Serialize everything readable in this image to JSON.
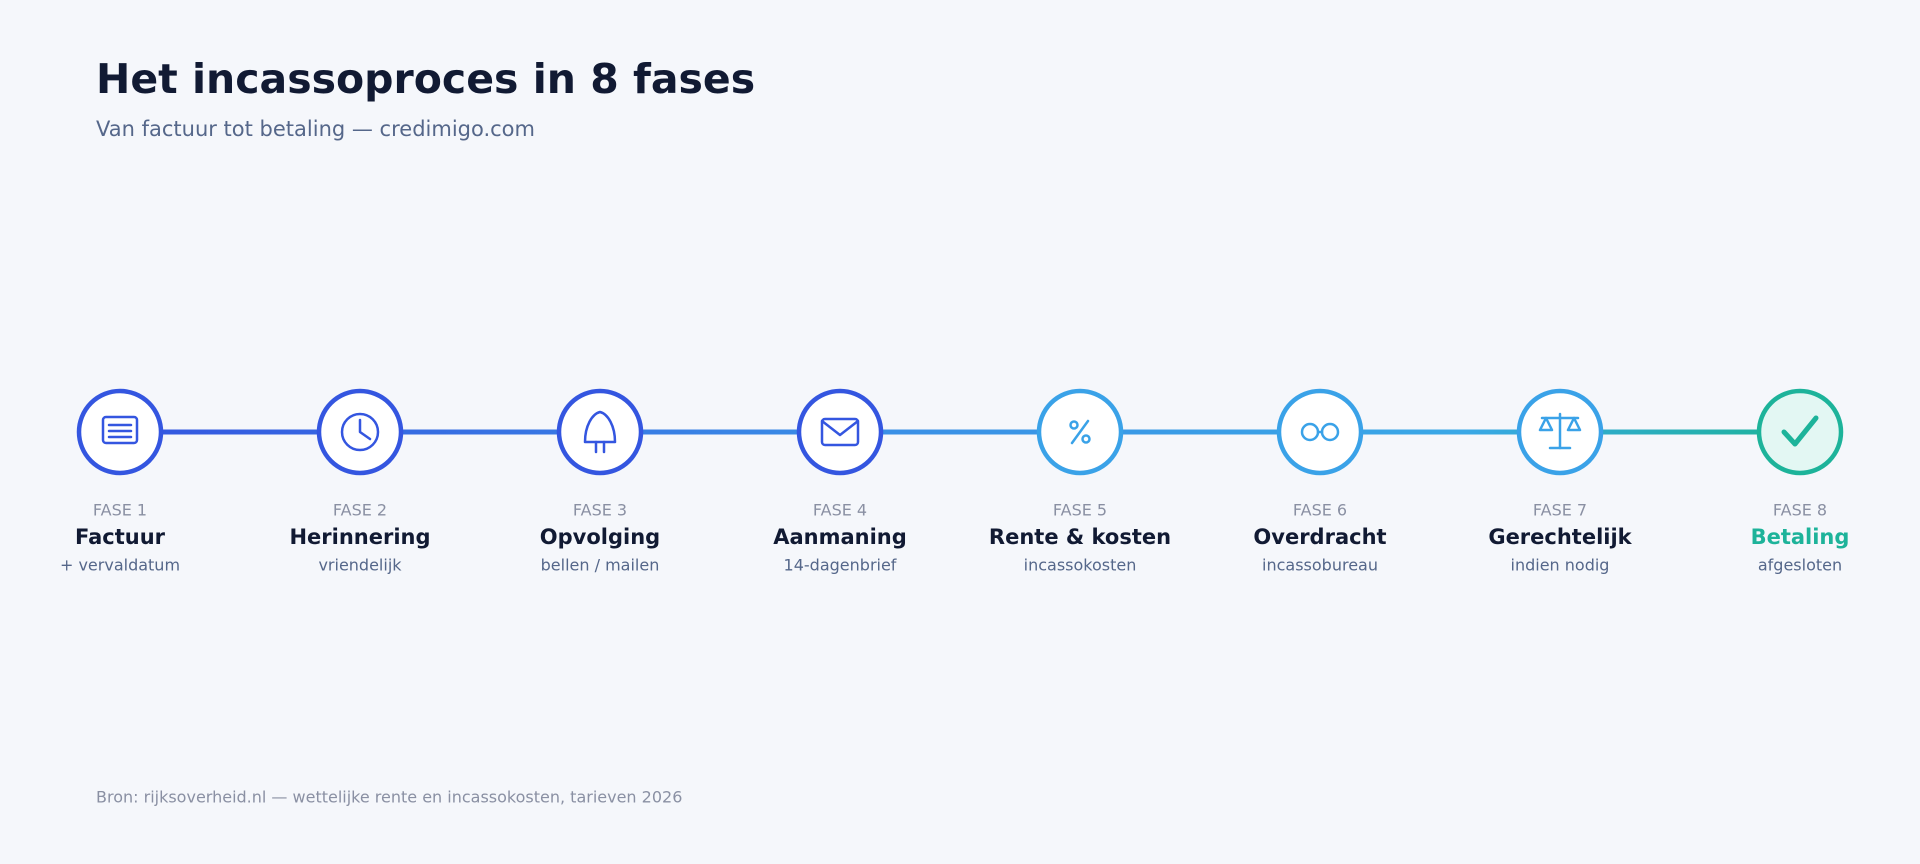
{
  "header": {
    "title": "Het incassoproces in 8 fases",
    "subtitle": "Van factuur tot betaling — credimigo.com"
  },
  "steps": [
    {
      "phase": "FASE 1",
      "title": "Factuur",
      "subtitle": "+ vervaldatum"
    },
    {
      "phase": "FASE 2",
      "title": "Herinnering",
      "subtitle": "vriendelijk"
    },
    {
      "phase": "FASE 3",
      "title": "Opvolging",
      "subtitle": "bellen / mailen"
    },
    {
      "phase": "FASE 4",
      "title": "Aanmaning",
      "subtitle": "14-dagenbrief"
    },
    {
      "phase": "FASE 5",
      "title": "Rente & kosten",
      "subtitle": "incassokosten"
    },
    {
      "phase": "FASE 6",
      "title": "Overdracht",
      "subtitle": "incassobureau"
    },
    {
      "phase": "FASE 7",
      "title": "Gerechtelijk",
      "subtitle": "indien nodig"
    },
    {
      "phase": "FASE 8",
      "title": "Betaling",
      "subtitle": "afgesloten"
    }
  ],
  "footer": "Bron: rijksoverheid.nl — wettelijke rente en incassokosten, tarieven 2026"
}
